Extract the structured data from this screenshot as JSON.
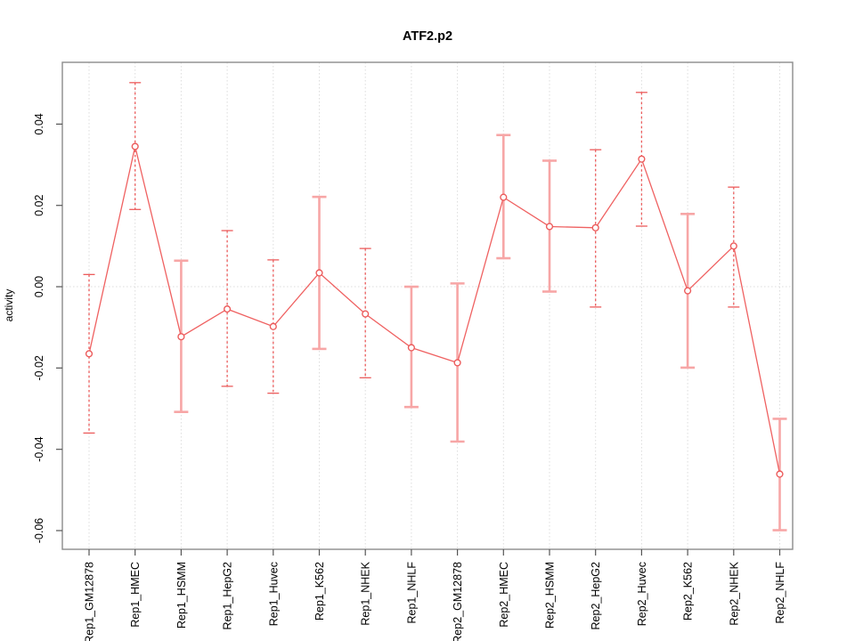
{
  "chart_data": {
    "type": "line",
    "title": "ATF2.p2",
    "ylabel": "activity",
    "xlabel": "",
    "ylim": [
      -0.0646,
      0.0552
    ],
    "grid": true,
    "legend": "none",
    "yticks": [
      "0.04",
      "0.02",
      "0.00",
      "-0.02",
      "-0.04",
      "-0.06"
    ],
    "ytick_values": [
      0.04,
      0.02,
      0.0,
      -0.02,
      -0.04,
      -0.06
    ],
    "categories": [
      "Rep1_GM12878",
      "Rep1_HMEC",
      "Rep1_HSMM",
      "Rep1_HepG2",
      "Rep1_Huvec",
      "Rep1_K562",
      "Rep1_NHEK",
      "Rep1_NHLF",
      "Rep2_GM12878",
      "Rep2_HMEC",
      "Rep2_HSMM",
      "Rep2_HepG2",
      "Rep2_Huvec",
      "Rep2_K562",
      "Rep2_NHEK",
      "Rep2_NHLF"
    ],
    "series": [
      {
        "name": "activity",
        "values": [
          -0.0165,
          0.0345,
          -0.0123,
          -0.0055,
          -0.0098,
          0.0034,
          -0.0067,
          -0.015,
          -0.0187,
          0.022,
          0.0148,
          0.0145,
          0.0314,
          -0.001,
          0.01,
          -0.0461
        ],
        "ci_low": [
          -0.036,
          0.019,
          -0.0308,
          -0.0245,
          -0.0262,
          -0.0153,
          -0.0224,
          -0.0296,
          -0.0381,
          0.007,
          -0.0012,
          -0.005,
          0.0149,
          -0.0199,
          -0.005,
          -0.0599
        ],
        "ci_high": [
          0.003,
          0.0502,
          0.0064,
          0.0138,
          0.0066,
          0.0221,
          0.0094,
          0.0,
          0.0008,
          0.0373,
          0.031,
          0.0337,
          0.0478,
          0.0179,
          0.0245,
          -0.0325
        ],
        "bar_styles": [
          "dashed",
          "dashed",
          "solid",
          "dashed",
          "dashed",
          "solid",
          "dashed",
          "solid",
          "solid",
          "solid",
          "solid",
          "dashed",
          "dashed",
          "solid",
          "dashed",
          "solid"
        ]
      }
    ]
  },
  "colors": {
    "point": "#ec5c5c",
    "line": "#ef6161",
    "bar_dashed": "#ec5c5c",
    "bar_solid": "#f7a6a6",
    "grid": "#dcdcdc",
    "box": "#8c8c8c",
    "tick": "#555555",
    "text": "#000000"
  }
}
